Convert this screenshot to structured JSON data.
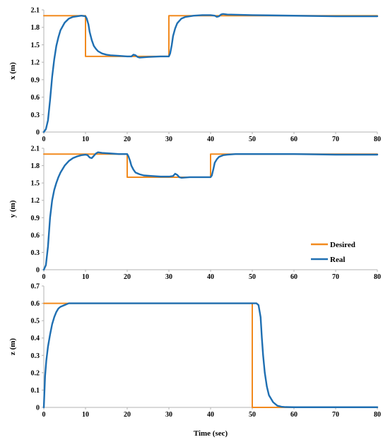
{
  "chart_data": {
    "type": "line",
    "xlabel": "Time (sec)",
    "xlim": [
      0,
      80
    ],
    "xticks": [
      "0",
      "10",
      "20",
      "30",
      "40",
      "50",
      "60",
      "70",
      "80"
    ],
    "colors": {
      "Desired": "#f28a1e",
      "Real": "#1f6fb2",
      "axis": "#b3b3b3"
    },
    "legend": {
      "position": "right",
      "entries": [
        "Desired",
        "Real"
      ]
    },
    "subplots": [
      {
        "ylabel": "x (m)",
        "ylim": [
          0,
          2.1
        ],
        "yticks": [
          "0",
          "0.3",
          "0.6",
          "0.9",
          "1.2",
          "1.5",
          "1.8",
          "2.1"
        ],
        "series": [
          {
            "name": "Desired",
            "x": [
              0,
              10,
              10,
              30,
              30,
              80
            ],
            "y": [
              2.0,
              2.0,
              1.3,
              1.3,
              2.0,
              2.0
            ]
          },
          {
            "name": "Real",
            "x": [
              0,
              0.5,
              1,
              1.5,
              2,
              2.5,
              3,
              3.5,
              4,
              5,
              6,
              7,
              8,
              9,
              10,
              10.3,
              10.7,
              11,
              11.5,
              12,
              12.5,
              13,
              14,
              15,
              16,
              18,
              20,
              21,
              21.5,
              22,
              22.5,
              23,
              25,
              28,
              30,
              30.3,
              30.7,
              31,
              31.5,
              32,
              33,
              34,
              36,
              38,
              40,
              41,
              41.5,
              42,
              42.5,
              43,
              44,
              50,
              60,
              70,
              80
            ],
            "y": [
              0.0,
              0.05,
              0.2,
              0.55,
              0.95,
              1.25,
              1.48,
              1.63,
              1.75,
              1.88,
              1.95,
              1.98,
              1.99,
              2.0,
              1.99,
              1.95,
              1.85,
              1.72,
              1.58,
              1.48,
              1.43,
              1.39,
              1.35,
              1.33,
              1.32,
              1.31,
              1.3,
              1.3,
              1.33,
              1.32,
              1.29,
              1.28,
              1.29,
              1.3,
              1.3,
              1.35,
              1.5,
              1.65,
              1.78,
              1.87,
              1.95,
              1.98,
              2.0,
              2.01,
              2.01,
              2.0,
              1.98,
              1.99,
              2.02,
              2.03,
              2.02,
              2.01,
              2.0,
              1.99,
              1.99
            ]
          }
        ]
      },
      {
        "ylabel": "y (m)",
        "ylim": [
          0,
          2.1
        ],
        "yticks": [
          "0",
          "0.3",
          "0.6",
          "0.9",
          "1.2",
          "1.5",
          "1.8",
          "2.1"
        ],
        "series": [
          {
            "name": "Desired",
            "x": [
              0,
              20,
              20,
              40,
              40,
              80
            ],
            "y": [
              2.0,
              2.0,
              1.6,
              1.6,
              2.0,
              2.0
            ]
          },
          {
            "name": "Real",
            "x": [
              0,
              0.5,
              1,
              1.5,
              2,
              2.5,
              3,
              3.5,
              4,
              5,
              6,
              7,
              8,
              9,
              10,
              10.5,
              11,
              11.5,
              12,
              12.5,
              13,
              14,
              16,
              18,
              20,
              20.3,
              20.7,
              21,
              21.5,
              22,
              23,
              24,
              26,
              28,
              30,
              31,
              31.5,
              32,
              32.5,
              33,
              35,
              38,
              40,
              40.3,
              40.7,
              41,
              41.5,
              42,
              43,
              44,
              46,
              50,
              60,
              70,
              80
            ],
            "y": [
              0.0,
              0.08,
              0.4,
              0.9,
              1.2,
              1.38,
              1.5,
              1.6,
              1.68,
              1.8,
              1.88,
              1.93,
              1.96,
              1.98,
              1.99,
              1.98,
              1.94,
              1.93,
              1.97,
              2.01,
              2.03,
              2.02,
              2.01,
              2.0,
              2.0,
              1.96,
              1.88,
              1.8,
              1.73,
              1.68,
              1.65,
              1.63,
              1.62,
              1.61,
              1.61,
              1.62,
              1.66,
              1.64,
              1.6,
              1.59,
              1.6,
              1.6,
              1.6,
              1.63,
              1.75,
              1.85,
              1.91,
              1.95,
              1.98,
              1.99,
              2.0,
              2.0,
              2.0,
              1.99,
              1.99
            ]
          }
        ]
      },
      {
        "ylabel": "z (m)",
        "ylim": [
          0,
          0.7
        ],
        "yticks": [
          "0",
          "0.1",
          "0.2",
          "0.3",
          "0.4",
          "0.5",
          "0.6",
          "0.7"
        ],
        "series": [
          {
            "name": "Desired",
            "x": [
              0,
              50,
              50,
              80
            ],
            "y": [
              0.6,
              0.6,
              0.0,
              0.0
            ]
          },
          {
            "name": "Real",
            "x": [
              0,
              0.3,
              0.6,
              1,
              1.5,
              2,
              2.5,
              3,
              3.5,
              4,
              5,
              6,
              7,
              8,
              10,
              20,
              30,
              40,
              50,
              51,
              51.5,
              52,
              52.3,
              52.6,
              53,
              53.5,
              54,
              55,
              56,
              57,
              58,
              60,
              70,
              80
            ],
            "y": [
              0.0,
              0.18,
              0.27,
              0.35,
              0.42,
              0.48,
              0.52,
              0.55,
              0.57,
              0.58,
              0.59,
              0.6,
              0.6,
              0.6,
              0.6,
              0.6,
              0.6,
              0.6,
              0.6,
              0.6,
              0.59,
              0.52,
              0.4,
              0.3,
              0.2,
              0.12,
              0.07,
              0.03,
              0.01,
              0.004,
              0.002,
              0.001,
              0.001,
              0.001
            ]
          }
        ]
      }
    ]
  }
}
